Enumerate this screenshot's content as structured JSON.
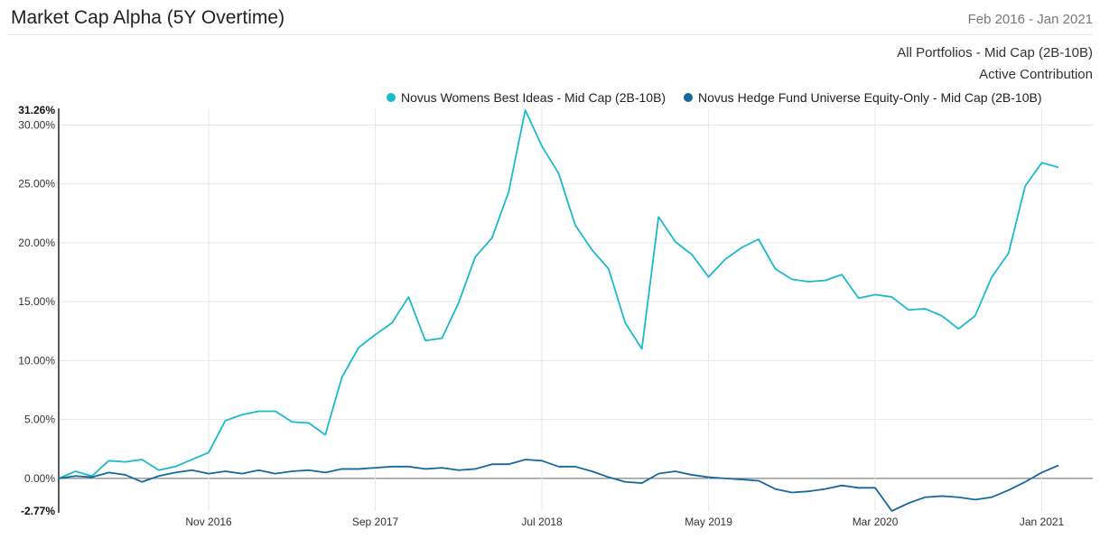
{
  "header": {
    "title": "Market Cap Alpha (5Y Overtime)",
    "date_range": "Feb 2016 - Jan 2021",
    "portfolio_label": "All Portfolios - Mid Cap (2B-10B)",
    "contribution_label": "Active Contribution"
  },
  "colors": {
    "series_1": "#1ab9cd",
    "series_2": "#16699e",
    "grid": "#e6e6e6",
    "axis": "#222222"
  },
  "chart_data": {
    "type": "line",
    "title": "Market Cap Alpha (5Y Overtime)",
    "xlabel": "",
    "ylabel": "",
    "x_tick_labels": [
      "Nov 2016",
      "Sep 2017",
      "Jul 2018",
      "May 2019",
      "Mar 2020",
      "Jan 2021"
    ],
    "y_tick_labels": [
      "31.26%",
      "30.00%",
      "25.00%",
      "20.00%",
      "15.00%",
      "10.00%",
      "5.00%",
      "0.00%",
      "-2.77%"
    ],
    "y_tick_values": [
      31.26,
      30,
      25,
      20,
      15,
      10,
      5,
      0,
      -2.77
    ],
    "ylim": [
      -2.77,
      31.26
    ],
    "x_range": [
      "Feb 2016",
      "Jan 2021"
    ],
    "grid": true,
    "legend_position": "top-center",
    "series": [
      {
        "name": "Novus Womens Best Ideas - Mid Cap (2B-10B)",
        "color": "#1ab9cd",
        "values": [
          0.0,
          0.6,
          0.2,
          1.5,
          1.4,
          1.6,
          0.7,
          1.0,
          1.6,
          2.2,
          4.9,
          5.4,
          5.7,
          5.7,
          4.8,
          4.7,
          3.7,
          8.6,
          11.1,
          12.2,
          13.2,
          15.4,
          11.7,
          11.9,
          14.9,
          18.8,
          20.4,
          24.3,
          31.26,
          28.2,
          25.9,
          21.5,
          19.4,
          17.8,
          13.2,
          11.0,
          22.2,
          20.1,
          19.0,
          17.1,
          18.6,
          19.6,
          20.3,
          17.8,
          16.9,
          16.7,
          16.8,
          17.3,
          15.3,
          15.6,
          15.4,
          14.3,
          14.4,
          13.8,
          12.7,
          13.8,
          17.1,
          19.1,
          24.8,
          26.8,
          26.4
        ]
      },
      {
        "name": "Novus Hedge Fund Universe Equity-Only - Mid Cap (2B-10B)",
        "color": "#16699e",
        "values": [
          0.0,
          0.2,
          0.1,
          0.5,
          0.3,
          -0.3,
          0.2,
          0.5,
          0.7,
          0.4,
          0.6,
          0.4,
          0.7,
          0.4,
          0.6,
          0.7,
          0.5,
          0.8,
          0.8,
          0.9,
          1.0,
          1.0,
          0.8,
          0.9,
          0.7,
          0.8,
          1.2,
          1.2,
          1.6,
          1.5,
          1.0,
          1.0,
          0.6,
          0.1,
          -0.3,
          -0.4,
          0.4,
          0.6,
          0.3,
          0.1,
          0.0,
          -0.1,
          -0.2,
          -0.9,
          -1.2,
          -1.1,
          -0.9,
          -0.6,
          -0.8,
          -0.8,
          -2.77,
          -2.1,
          -1.6,
          -1.5,
          -1.6,
          -1.8,
          -1.6,
          -1.0,
          -0.3,
          0.5,
          1.1
        ]
      }
    ]
  }
}
